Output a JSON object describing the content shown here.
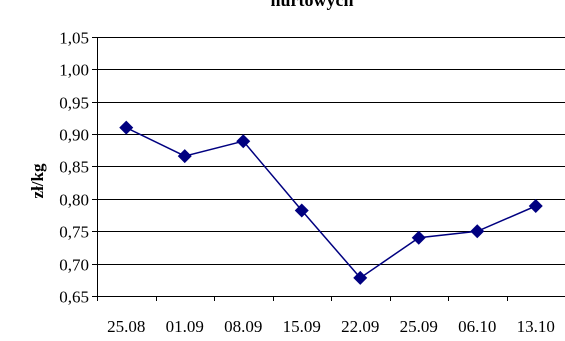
{
  "chart_data": {
    "type": "line",
    "title": "hurtowych",
    "ylabel": "zł/kg",
    "xlabel": "",
    "categories": [
      "25.08",
      "01.09",
      "08.09",
      "15.09",
      "22.09",
      "25.09",
      "06.10",
      "13.10"
    ],
    "series": [
      {
        "values": [
          0.91,
          0.866,
          0.889,
          0.782,
          0.678,
          0.74,
          0.75,
          0.789
        ],
        "color": "#000080",
        "marker": "diamond"
      }
    ],
    "ylim": [
      0.65,
      1.05
    ],
    "yticks": [
      "0,65",
      "0,70",
      "0,75",
      "0,80",
      "0,85",
      "0,90",
      "0,95",
      "1,00",
      "1,05"
    ],
    "grid": true,
    "legend": "none"
  }
}
